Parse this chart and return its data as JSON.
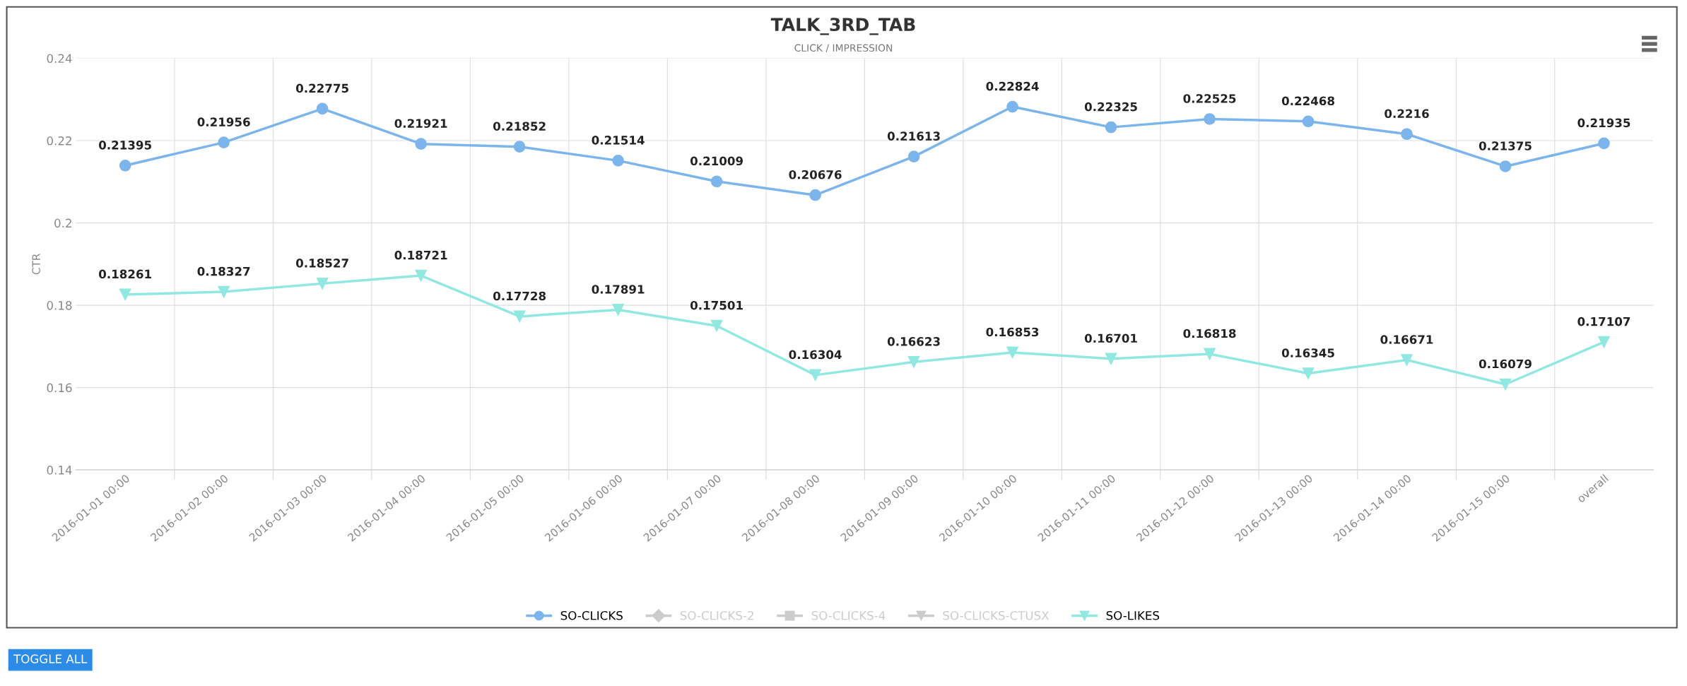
{
  "chart_data": {
    "type": "line",
    "title": "TALK_3RD_TAB",
    "subtitle": "CLICK / IMPRESSION",
    "ylabel": "CTR",
    "categories": [
      "2016-01-01 00:00",
      "2016-01-02 00:00",
      "2016-01-03 00:00",
      "2016-01-04 00:00",
      "2016-01-05 00:00",
      "2016-01-06 00:00",
      "2016-01-07 00:00",
      "2016-01-08 00:00",
      "2016-01-09 00:00",
      "2016-01-10 00:00",
      "2016-01-11 00:00",
      "2016-01-12 00:00",
      "2016-01-13 00:00",
      "2016-01-14 00:00",
      "2016-01-15 00:00",
      "overall"
    ],
    "series": [
      {
        "name": "SO-CLICKS",
        "color": "#7cb5ec",
        "marker": "circle",
        "values": [
          0.21395,
          0.21956,
          0.22775,
          0.21921,
          0.21852,
          0.21514,
          0.21009,
          0.20676,
          0.21613,
          0.22824,
          0.22325,
          0.22525,
          0.22468,
          0.2216,
          0.21375,
          0.21935
        ]
      },
      {
        "name": "SO-CLICKS-2",
        "color": "#cccccc",
        "marker": "diamond",
        "values": [
          null,
          null,
          null,
          null,
          null,
          null,
          null,
          null,
          null,
          null,
          null,
          null,
          null,
          null,
          null,
          null
        ]
      },
      {
        "name": "SO-CLICKS-4",
        "color": "#cccccc",
        "marker": "square",
        "values": [
          null,
          null,
          null,
          null,
          null,
          null,
          null,
          null,
          null,
          null,
          null,
          null,
          null,
          null,
          null,
          null
        ]
      },
      {
        "name": "SO-CLICKS-CTUSX",
        "color": "#cccccc",
        "marker": "triangle",
        "values": [
          null,
          null,
          null,
          null,
          null,
          null,
          null,
          null,
          null,
          null,
          null,
          null,
          null,
          null,
          null,
          null
        ]
      },
      {
        "name": "SO-LIKES",
        "color": "#91e8e1",
        "marker": "triangle",
        "values": [
          0.18261,
          0.18327,
          0.18527,
          0.18721,
          0.17728,
          0.17891,
          0.17501,
          0.16304,
          0.16623,
          0.16853,
          0.16701,
          0.16818,
          0.16345,
          0.16671,
          0.16079,
          0.17107
        ]
      }
    ],
    "ylim": [
      0.14,
      0.24
    ],
    "yticks": [
      0.14,
      0.16,
      0.18,
      0.2,
      0.22,
      0.24
    ],
    "grid": true,
    "legend": "bottom",
    "data_labels": true,
    "line_style": "solid",
    "annotations": [
      "TOGGLE ALL"
    ]
  }
}
